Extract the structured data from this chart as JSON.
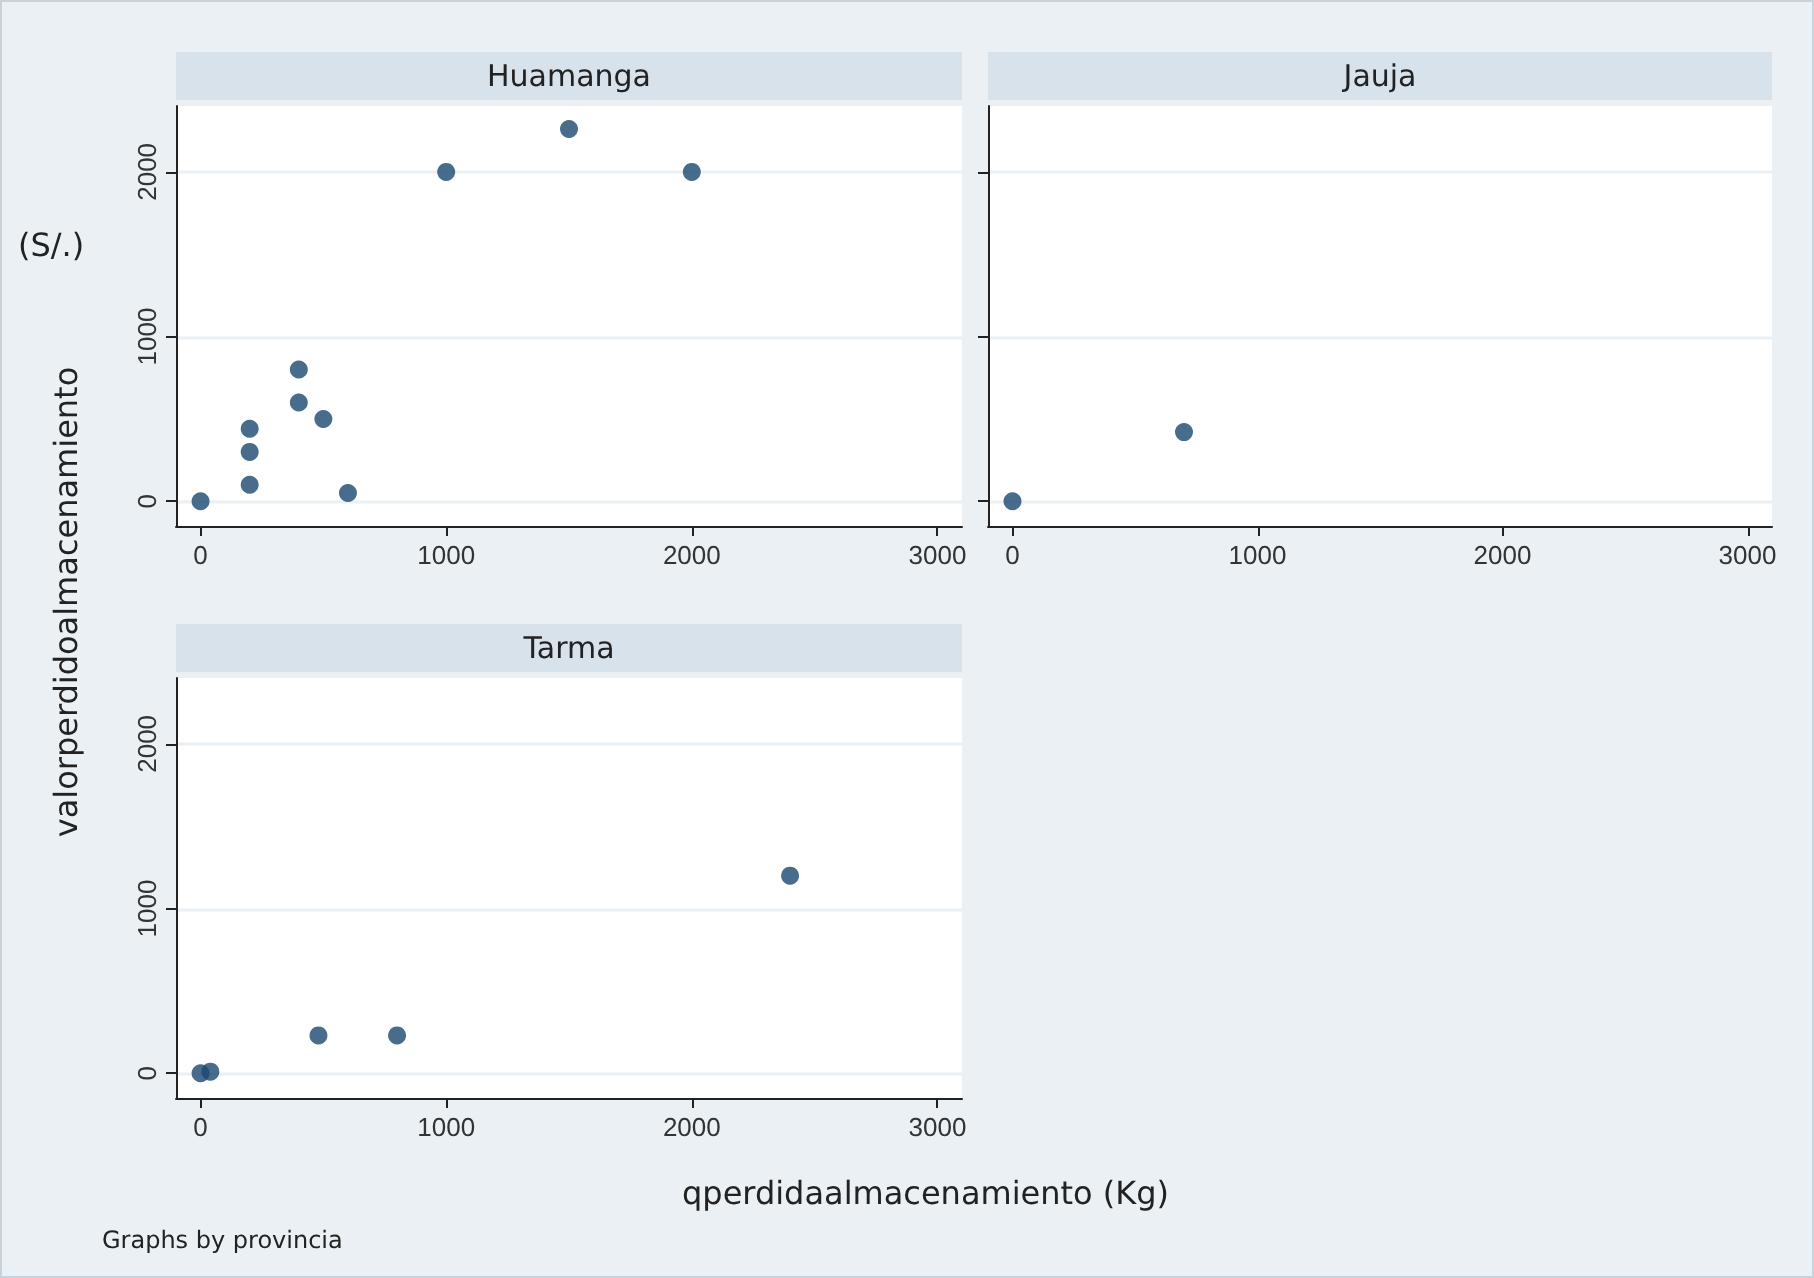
{
  "chart_data": [
    {
      "type": "scatter",
      "title": "Huamanga",
      "ylabel": "valorperdidoalmacenamiento",
      "annotations": [
        "(S/.)"
      ],
      "x": [
        0,
        200,
        200,
        200,
        400,
        400,
        500,
        600,
        1000,
        1500,
        2000
      ],
      "values": [
        0,
        100,
        300,
        440,
        800,
        600,
        500,
        50,
        2000,
        2260,
        2000
      ],
      "color": "#1a476f",
      "marker": "circle",
      "xlim": [
        -100,
        3100
      ],
      "ylim": [
        -150,
        2400
      ],
      "xticks": [
        0,
        1000,
        2000,
        3000
      ],
      "yticks": [
        0,
        1000,
        2000
      ],
      "grid": "y"
    },
    {
      "type": "scatter",
      "title": "Jauja",
      "x": [
        0,
        700
      ],
      "values": [
        0,
        420
      ],
      "color": "#1a476f",
      "marker": "circle",
      "xlim": [
        -100,
        3100
      ],
      "ylim": [
        -150,
        2400
      ],
      "xticks": [
        0,
        1000,
        2000,
        3000
      ],
      "yticks": [
        0,
        1000,
        2000
      ],
      "grid": "y",
      "tick_labels": "x"
    },
    {
      "type": "scatter",
      "title": "Tarma",
      "xlabel": "qperdidaalmacenamiento (Kg)",
      "annotations": [
        "Graphs by provincia"
      ],
      "x": [
        0,
        40,
        480,
        800,
        2400
      ],
      "values": [
        0,
        10,
        230,
        230,
        1200
      ],
      "color": "#1a476f",
      "marker": "circle",
      "xlim": [
        -100,
        3100
      ],
      "ylim": [
        -150,
        2400
      ],
      "xticks": [
        0,
        1000,
        2000,
        3000
      ],
      "yticks": [
        0,
        1000,
        2000
      ],
      "grid": "y"
    }
  ]
}
